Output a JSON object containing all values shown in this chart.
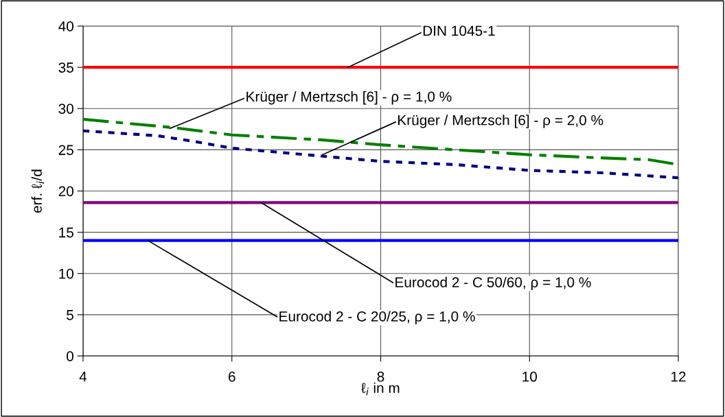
{
  "chart_data": {
    "type": "line",
    "xlabel": "ℓ$_{i}$ in m",
    "ylabel": "erf. ℓ$_{i}$/d",
    "xlim": [
      4,
      12
    ],
    "xticks": [
      4,
      6,
      8,
      10,
      12
    ],
    "ylim": [
      0,
      40
    ],
    "yticks": [
      0,
      5,
      10,
      15,
      20,
      25,
      30,
      35,
      40
    ],
    "grid": true,
    "series": [
      {
        "color": "#008000",
        "line_style": "dashed",
        "x": [
          4,
          5.2,
          6,
          7.2,
          8,
          9,
          10,
          11,
          11.6,
          12
        ],
        "values": [
          28.7,
          27.7,
          26.8,
          26.2,
          25.6,
          25.0,
          24.4,
          24.0,
          23.8,
          23.2
        ]
      },
      {
        "color": "#000080",
        "line_style": "dotted",
        "x": [
          4,
          5,
          5.5,
          6,
          7,
          8,
          9,
          10,
          11,
          11.5,
          12
        ],
        "values": [
          27.3,
          26.7,
          26.0,
          25.2,
          24.4,
          23.6,
          23.2,
          22.5,
          22.2,
          21.9,
          21.6
        ]
      }
    ],
    "ref_lines": [
      {
        "axis": "y",
        "value": 35,
        "color": "#ff0000"
      },
      {
        "axis": "y",
        "value": 18.6,
        "color": "#800080"
      },
      {
        "axis": "y",
        "value": 14,
        "color": "#0000ff"
      }
    ],
    "annotations": [
      {
        "text": "DIN 1045-1",
        "x": 7.56,
        "y": 35
      },
      {
        "text": "Krüger / Mertzsch [6] - ρ = 1,0 %",
        "x": 5.17,
        "y": 27.6
      },
      {
        "text": "Krüger / Mertzsch [6] - ρ = 2,0 %",
        "x": 7.22,
        "y": 24.4
      },
      {
        "text": "Eurocod 2 - C 50/60, ρ = 1,0 %",
        "x": 6.39,
        "y": 18.6
      },
      {
        "text": "Eurocod 2 - C 20/25, ρ = 1,0 %",
        "x": 4.87,
        "y": 14
      }
    ]
  }
}
